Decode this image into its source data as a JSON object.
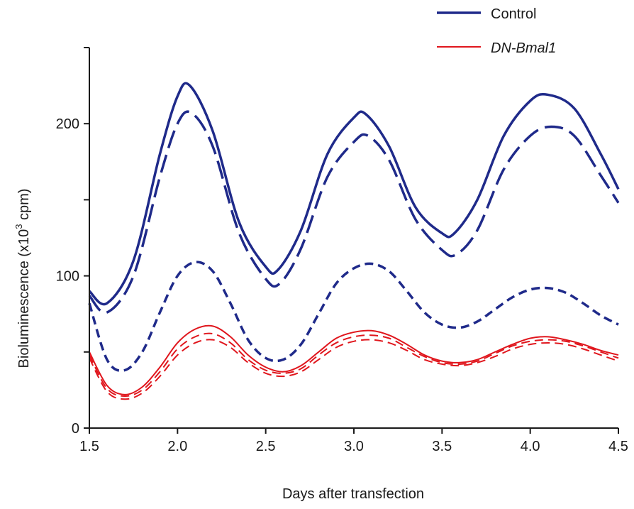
{
  "chart_data": {
    "type": "line",
    "title": "",
    "xlabel": "Days after transfection",
    "ylabel": "Bioluminescence (x10",
    "ylabel_sup": "3",
    "ylabel_tail": " cpm)",
    "xlim": [
      1.5,
      4.5
    ],
    "ylim": [
      0,
      250
    ],
    "x_ticks": [
      1.5,
      2.0,
      2.5,
      3.0,
      3.5,
      4.0,
      4.5
    ],
    "x_tick_labels": [
      "1.5",
      "2.0",
      "2.5",
      "3.0",
      "3.5",
      "4.0",
      "4.5"
    ],
    "y_ticks": [
      0,
      100,
      200
    ],
    "y_tick_labels": [
      "0",
      "100",
      "200"
    ],
    "grid": false,
    "legend_position": "top-right",
    "legend": [
      {
        "label": "Control",
        "color": "#1f2a8a"
      },
      {
        "label": "DN-Bmal1",
        "color": "#e0161d"
      }
    ],
    "series": [
      {
        "group": "Control",
        "color": "#1f2a8a",
        "style": "solid",
        "width": 3.5,
        "x": [
          1.5,
          1.6,
          1.75,
          1.9,
          2.0,
          2.07,
          2.2,
          2.35,
          2.5,
          2.57,
          2.7,
          2.85,
          3.0,
          3.07,
          3.2,
          3.35,
          3.5,
          3.57,
          3.7,
          3.85,
          4.0,
          4.1,
          4.25,
          4.4,
          4.5
        ],
        "y": [
          90,
          82,
          110,
          180,
          218,
          225,
          195,
          135,
          106,
          104,
          130,
          180,
          204,
          206,
          185,
          145,
          128,
          128,
          150,
          192,
          215,
          219,
          210,
          180,
          157
        ]
      },
      {
        "group": "Control",
        "color": "#1f2a8a",
        "style": "long-dash",
        "width": 3.5,
        "x": [
          1.5,
          1.6,
          1.75,
          1.9,
          2.0,
          2.08,
          2.2,
          2.35,
          2.5,
          2.58,
          2.7,
          2.85,
          3.0,
          3.08,
          3.2,
          3.35,
          3.5,
          3.58,
          3.7,
          3.85,
          4.0,
          4.12,
          4.25,
          4.4,
          4.5
        ],
        "y": [
          87,
          76,
          100,
          165,
          200,
          207,
          185,
          128,
          98,
          95,
          118,
          165,
          188,
          192,
          176,
          137,
          117,
          114,
          130,
          170,
          192,
          198,
          192,
          166,
          148
        ]
      },
      {
        "group": "Control",
        "color": "#1f2a8a",
        "style": "short-dash",
        "width": 3.5,
        "x": [
          1.5,
          1.6,
          1.7,
          1.8,
          1.9,
          2.0,
          2.1,
          2.2,
          2.3,
          2.4,
          2.5,
          2.6,
          2.7,
          2.8,
          2.9,
          3.0,
          3.1,
          3.2,
          3.3,
          3.4,
          3.5,
          3.6,
          3.7,
          3.8,
          3.9,
          4.0,
          4.1,
          4.2,
          4.3,
          4.4,
          4.5
        ],
        "y": [
          82,
          45,
          38,
          50,
          76,
          100,
          109,
          103,
          82,
          58,
          46,
          45,
          55,
          75,
          95,
          105,
          108,
          103,
          90,
          76,
          68,
          66,
          70,
          78,
          86,
          91,
          92,
          89,
          82,
          74,
          68
        ]
      },
      {
        "group": "DN-Bmal1",
        "color": "#e0161d",
        "style": "solid",
        "width": 2,
        "x": [
          1.5,
          1.6,
          1.7,
          1.8,
          1.9,
          2.0,
          2.1,
          2.2,
          2.3,
          2.4,
          2.5,
          2.6,
          2.7,
          2.8,
          2.9,
          3.0,
          3.1,
          3.2,
          3.3,
          3.4,
          3.5,
          3.6,
          3.7,
          3.8,
          3.9,
          4.0,
          4.1,
          4.2,
          4.3,
          4.4,
          4.5
        ],
        "y": [
          50,
          28,
          22,
          27,
          40,
          56,
          65,
          67,
          60,
          48,
          40,
          37,
          41,
          50,
          59,
          63,
          64,
          61,
          55,
          48,
          44,
          43,
          45,
          50,
          55,
          59,
          60,
          58,
          55,
          51,
          48
        ]
      },
      {
        "group": "DN-Bmal1",
        "color": "#e0161d",
        "style": "short-dash",
        "width": 2,
        "x": [
          1.5,
          1.6,
          1.7,
          1.8,
          1.9,
          2.0,
          2.1,
          2.2,
          2.3,
          2.4,
          2.5,
          2.6,
          2.7,
          2.8,
          2.9,
          3.0,
          3.1,
          3.2,
          3.3,
          3.4,
          3.5,
          3.6,
          3.7,
          3.8,
          3.9,
          4.0,
          4.1,
          4.2,
          4.3,
          4.4,
          4.5
        ],
        "y": [
          48,
          26,
          21,
          25,
          37,
          52,
          60,
          62,
          56,
          45,
          38,
          36,
          39,
          48,
          56,
          60,
          61,
          59,
          53,
          47,
          43,
          42,
          44,
          49,
          54,
          57,
          58,
          57,
          54,
          50,
          46
        ]
      },
      {
        "group": "DN-Bmal1",
        "color": "#e0161d",
        "style": "short-dash",
        "width": 2,
        "x": [
          1.5,
          1.6,
          1.7,
          1.8,
          1.9,
          2.0,
          2.1,
          2.2,
          2.3,
          2.4,
          2.5,
          2.6,
          2.7,
          2.8,
          2.9,
          3.0,
          3.1,
          3.2,
          3.3,
          3.4,
          3.5,
          3.6,
          3.7,
          3.8,
          3.9,
          4.0,
          4.1,
          4.2,
          4.3,
          4.4,
          4.5
        ],
        "y": [
          46,
          24,
          19,
          23,
          34,
          48,
          56,
          58,
          53,
          43,
          36,
          34,
          37,
          45,
          53,
          57,
          58,
          56,
          51,
          45,
          42,
          41,
          43,
          47,
          52,
          55,
          56,
          55,
          52,
          48,
          44
        ]
      }
    ]
  }
}
